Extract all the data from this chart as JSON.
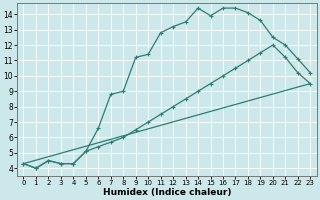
{
  "title": "",
  "xlabel": "Humidex (Indice chaleur)",
  "bg_color": "#cce8eb",
  "grid_color": "#ffffff",
  "line_color": "#2e7d72",
  "xlim": [
    -0.5,
    23.5
  ],
  "ylim": [
    3.5,
    14.7
  ],
  "xticks": [
    0,
    1,
    2,
    3,
    4,
    5,
    6,
    7,
    8,
    9,
    10,
    11,
    12,
    13,
    14,
    15,
    16,
    17,
    18,
    19,
    20,
    21,
    22,
    23
  ],
  "yticks": [
    4,
    5,
    6,
    7,
    8,
    9,
    10,
    11,
    12,
    13,
    14
  ],
  "line1_x": [
    0,
    1,
    2,
    3,
    4,
    5,
    6,
    7,
    8,
    9,
    10,
    11,
    12,
    13,
    14,
    15,
    16,
    17,
    18,
    19,
    20,
    21,
    22,
    23
  ],
  "line1_y": [
    4.3,
    4.0,
    4.5,
    4.3,
    4.3,
    5.1,
    6.6,
    8.8,
    9.0,
    11.2,
    11.4,
    12.8,
    13.2,
    13.5,
    14.4,
    13.9,
    14.4,
    14.4,
    14.1,
    13.6,
    12.5,
    12.0,
    11.1,
    10.2
  ],
  "line2_x": [
    0,
    1,
    2,
    3,
    4,
    5,
    6,
    7,
    8,
    9,
    10,
    11,
    12,
    13,
    14,
    15,
    16,
    17,
    18,
    19,
    20,
    21,
    22,
    23
  ],
  "line2_y": [
    4.3,
    4.0,
    4.5,
    4.3,
    4.3,
    5.1,
    5.4,
    5.7,
    6.0,
    6.5,
    7.0,
    7.5,
    8.0,
    8.5,
    9.0,
    9.5,
    10.0,
    10.5,
    11.0,
    11.5,
    12.0,
    11.2,
    10.2,
    9.5
  ],
  "line3_x": [
    0,
    23
  ],
  "line3_y": [
    4.3,
    9.5
  ]
}
